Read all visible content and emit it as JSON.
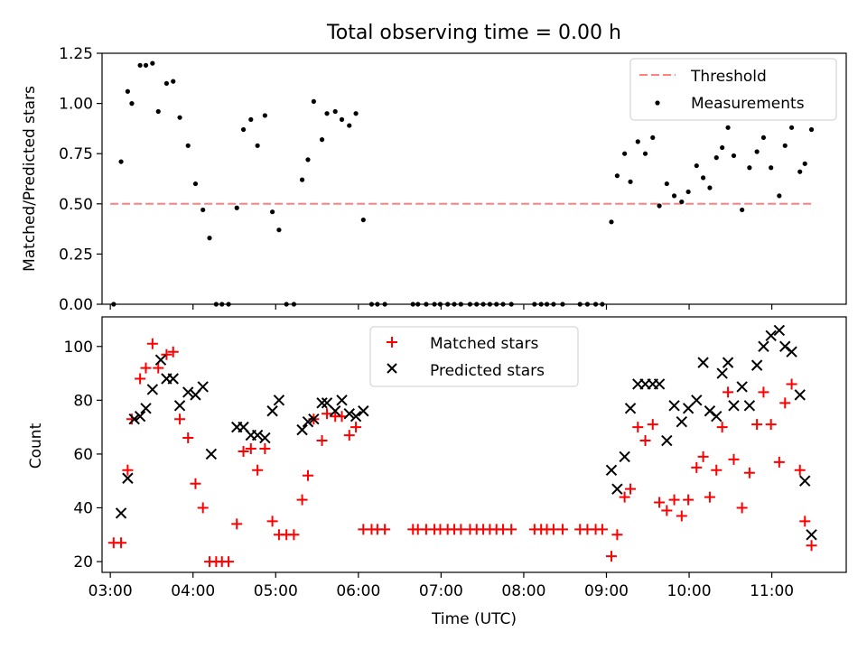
{
  "title": "Total observing time = 0.00 h",
  "x_tick_labels": [
    "03:00",
    "04:00",
    "05:00",
    "06:00",
    "07:00",
    "08:00",
    "09:00",
    "10:00",
    "11:00"
  ],
  "chart_data": [
    {
      "type": "scatter",
      "ylabel": "Matched/Predicted stars",
      "xlabel": "",
      "xlim": [
        2.9,
        11.9
      ],
      "ylim": [
        0,
        1.25
      ],
      "yticks": [
        0,
        0.25,
        0.5,
        0.75,
        1.0,
        1.25
      ],
      "ytick_labels": [
        "0.00",
        "0.25",
        "0.50",
        "0.75",
        "1.00",
        "1.25"
      ],
      "grid": false,
      "legend_position": "upper right",
      "threshold": {
        "name": "Threshold",
        "value": 0.5,
        "x_range": [
          3.0,
          11.5
        ],
        "color": "#ff8080",
        "style": "dashed"
      },
      "series": [
        {
          "name": "Measurements",
          "marker": "dot",
          "color": "#000000",
          "x": [
            3.04,
            3.13,
            3.21,
            3.26,
            3.36,
            3.43,
            3.51,
            3.58,
            3.68,
            3.76,
            3.84,
            3.94,
            4.03,
            4.12,
            4.2,
            4.28,
            4.35,
            4.43,
            4.53,
            4.61,
            4.7,
            4.78,
            4.87,
            4.96,
            5.04,
            5.13,
            5.22,
            5.32,
            5.39,
            5.46,
            5.56,
            5.62,
            5.72,
            5.8,
            5.89,
            5.97,
            6.06,
            6.16,
            6.23,
            6.32,
            6.66,
            6.72,
            6.82,
            6.92,
            6.99,
            7.08,
            7.16,
            7.24,
            7.35,
            7.43,
            7.51,
            7.59,
            7.67,
            7.75,
            7.85,
            8.13,
            8.21,
            8.28,
            8.36,
            8.47,
            8.68,
            8.77,
            8.87,
            8.95,
            9.06,
            9.13,
            9.22,
            9.29,
            9.38,
            9.47,
            9.56,
            9.64,
            9.73,
            9.82,
            9.91,
            9.99,
            10.09,
            10.17,
            10.25,
            10.33,
            10.4,
            10.47,
            10.54,
            10.64,
            10.73,
            10.82,
            10.9,
            10.99,
            11.09,
            11.16,
            11.24,
            11.34,
            11.4,
            11.48
          ],
          "y": [
            0,
            0.71,
            1.06,
            1.0,
            1.19,
            1.19,
            1.2,
            0.96,
            1.1,
            1.11,
            0.93,
            0.79,
            0.6,
            0.47,
            0.33,
            0,
            0,
            0,
            0.48,
            0.87,
            0.92,
            0.79,
            0.94,
            0.46,
            0.37,
            0,
            0,
            0.62,
            0.72,
            1.01,
            0.82,
            0.95,
            0.96,
            0.92,
            0.89,
            0.95,
            0.42,
            0,
            0,
            0,
            0,
            0,
            0,
            0,
            0,
            0,
            0,
            0,
            0,
            0,
            0,
            0,
            0,
            0,
            0,
            0,
            0,
            0,
            0,
            0,
            0,
            0,
            0,
            0,
            0.41,
            0.64,
            0.75,
            0.61,
            0.81,
            0.75,
            0.83,
            0.49,
            0.6,
            0.54,
            0.51,
            0.56,
            0.69,
            0.63,
            0.58,
            0.73,
            0.78,
            0.88,
            0.74,
            0.47,
            0.68,
            0.76,
            0.83,
            0.68,
            0.54,
            0.79,
            0.88,
            0.66,
            0.7,
            0.87
          ]
        }
      ]
    },
    {
      "type": "scatter",
      "ylabel": "Count",
      "xlabel": "Time (UTC)",
      "xlim": [
        2.9,
        11.9
      ],
      "ylim": [
        16,
        111
      ],
      "yticks": [
        20,
        40,
        60,
        80,
        100
      ],
      "ytick_labels": [
        "20",
        "40",
        "60",
        "80",
        "100"
      ],
      "grid": false,
      "legend_position": "upper center",
      "series": [
        {
          "name": "Matched stars",
          "marker": "plus",
          "color": "#ff0000",
          "x": [
            3.04,
            3.13,
            3.21,
            3.26,
            3.36,
            3.43,
            3.51,
            3.58,
            3.68,
            3.76,
            3.84,
            3.94,
            4.03,
            4.12,
            4.2,
            4.28,
            4.35,
            4.43,
            4.53,
            4.61,
            4.7,
            4.78,
            4.87,
            4.96,
            5.04,
            5.13,
            5.22,
            5.32,
            5.39,
            5.46,
            5.56,
            5.62,
            5.72,
            5.8,
            5.89,
            5.97,
            6.06,
            6.16,
            6.23,
            6.32,
            6.66,
            6.72,
            6.82,
            6.92,
            6.99,
            7.08,
            7.16,
            7.24,
            7.35,
            7.43,
            7.51,
            7.59,
            7.67,
            7.75,
            7.85,
            8.13,
            8.21,
            8.28,
            8.36,
            8.47,
            8.68,
            8.77,
            8.87,
            8.95,
            9.06,
            9.13,
            9.22,
            9.29,
            9.38,
            9.47,
            9.56,
            9.64,
            9.73,
            9.82,
            9.91,
            9.99,
            10.09,
            10.17,
            10.25,
            10.33,
            10.4,
            10.47,
            10.54,
            10.64,
            10.73,
            10.82,
            10.9,
            10.99,
            11.09,
            11.16,
            11.24,
            11.34,
            11.4,
            11.48
          ],
          "y": [
            27,
            27,
            54,
            73,
            88,
            92,
            101,
            92,
            97,
            98,
            73,
            66,
            49,
            40,
            20,
            20,
            20,
            20,
            34,
            61,
            62,
            54,
            62,
            35,
            30,
            30,
            30,
            43,
            52,
            73,
            65,
            75,
            74,
            74,
            67,
            70,
            32,
            32,
            32,
            32,
            32,
            32,
            32,
            32,
            32,
            32,
            32,
            32,
            32,
            32,
            32,
            32,
            32,
            32,
            32,
            32,
            32,
            32,
            32,
            32,
            32,
            32,
            32,
            32,
            22,
            30,
            44,
            47,
            70,
            65,
            71,
            42,
            39,
            43,
            37,
            43,
            55,
            59,
            44,
            54,
            70,
            83,
            58,
            40,
            53,
            71,
            83,
            71,
            57,
            79,
            86,
            54,
            35,
            26
          ]
        },
        {
          "name": "Predicted stars",
          "marker": "x",
          "color": "#000000",
          "x": [
            3.13,
            3.21,
            3.29,
            3.36,
            3.43,
            3.51,
            3.61,
            3.68,
            3.76,
            3.84,
            3.94,
            4.03,
            4.12,
            4.22,
            4.53,
            4.61,
            4.7,
            4.78,
            4.87,
            4.96,
            5.04,
            5.32,
            5.39,
            5.46,
            5.56,
            5.62,
            5.72,
            5.8,
            5.89,
            5.97,
            6.06,
            9.06,
            9.13,
            9.22,
            9.29,
            9.38,
            9.47,
            9.56,
            9.64,
            9.73,
            9.82,
            9.91,
            9.99,
            10.09,
            10.17,
            10.25,
            10.33,
            10.4,
            10.47,
            10.54,
            10.64,
            10.73,
            10.82,
            10.9,
            10.99,
            11.09,
            11.16,
            11.24,
            11.34,
            11.4,
            11.48
          ],
          "y": [
            38,
            51,
            73,
            74,
            77,
            84,
            95,
            88,
            88,
            78,
            83,
            82,
            85,
            60,
            70,
            70,
            67,
            67,
            66,
            76,
            80,
            69,
            72,
            73,
            79,
            79,
            76,
            80,
            75,
            74,
            76,
            54,
            47,
            59,
            77,
            86,
            86,
            86,
            86,
            65,
            78,
            72,
            77,
            80,
            94,
            76,
            74,
            90,
            94,
            78,
            85,
            78,
            93,
            100,
            104,
            106,
            100,
            98,
            82,
            50,
            30
          ]
        }
      ]
    }
  ]
}
